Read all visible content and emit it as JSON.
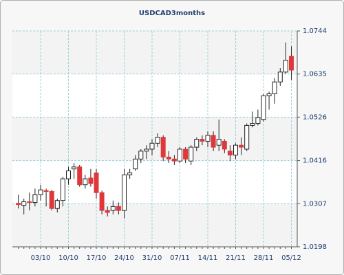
{
  "chart_data": {
    "type": "candlestick",
    "title": "USDCAD3months",
    "categories": [
      null,
      null,
      null,
      null,
      "03/10",
      null,
      null,
      null,
      null,
      "10/10",
      null,
      null,
      null,
      null,
      "17/10",
      null,
      null,
      null,
      null,
      "24/10",
      null,
      null,
      null,
      null,
      "31/10",
      null,
      null,
      null,
      null,
      "07/11",
      null,
      null,
      null,
      null,
      "14/11",
      null,
      null,
      null,
      null,
      "21/11",
      null,
      null,
      null,
      null,
      "28/11",
      null,
      null,
      null,
      null,
      "05/12"
    ],
    "open": [
      1.0308,
      1.0303,
      1.0312,
      1.031,
      1.033,
      1.034,
      1.0338,
      1.0295,
      1.0315,
      1.037,
      1.0395,
      1.04,
      1.0355,
      1.0372,
      1.0385,
      1.0335,
      1.029,
      1.029,
      1.03,
      1.029,
      1.038,
      1.0395,
      1.042,
      1.044,
      1.0445,
      1.046,
      1.0475,
      1.0425,
      1.042,
      1.0415,
      1.0445,
      1.0415,
      1.045,
      1.047,
      1.0465,
      1.048,
      1.0455,
      1.0465,
      1.044,
      1.043,
      1.0455,
      1.0445,
      1.0505,
      1.051,
      1.052,
      1.058,
      1.0585,
      1.0615,
      1.064,
      1.068
    ],
    "high": [
      1.033,
      1.032,
      1.0335,
      1.0345,
      1.0355,
      1.0345,
      1.0342,
      1.032,
      1.0375,
      1.04,
      1.041,
      1.0405,
      1.038,
      1.0395,
      1.0395,
      1.034,
      1.03,
      1.0315,
      1.031,
      1.0395,
      1.0395,
      1.043,
      1.0445,
      1.0455,
      1.047,
      1.0485,
      1.048,
      1.044,
      1.043,
      1.045,
      1.045,
      1.0455,
      1.0475,
      1.048,
      1.049,
      1.049,
      1.052,
      1.047,
      1.0455,
      1.046,
      1.0475,
      1.051,
      1.054,
      1.0545,
      1.0585,
      1.059,
      1.0625,
      1.065,
      1.0715,
      1.0705
    ],
    "low": [
      1.0295,
      1.028,
      1.029,
      1.03,
      1.0315,
      1.03,
      1.029,
      1.0285,
      1.03,
      1.0355,
      1.037,
      1.035,
      1.0345,
      1.035,
      1.032,
      1.028,
      1.0275,
      1.028,
      1.028,
      1.027,
      1.037,
      1.039,
      1.041,
      1.042,
      1.043,
      1.045,
      1.0415,
      1.041,
      1.0405,
      1.041,
      1.041,
      1.0405,
      1.044,
      1.0455,
      1.045,
      1.044,
      1.044,
      1.0435,
      1.0415,
      1.042,
      1.043,
      1.044,
      1.05,
      1.0505,
      1.0515,
      1.0545,
      1.056,
      1.0605,
      1.0635,
      1.062
    ],
    "close": [
      1.0305,
      1.0312,
      1.031,
      1.033,
      1.0342,
      1.0338,
      1.0295,
      1.0315,
      1.037,
      1.039,
      1.04,
      1.0355,
      1.037,
      1.0358,
      1.0335,
      1.029,
      1.0285,
      1.03,
      1.029,
      1.038,
      1.0385,
      1.042,
      1.044,
      1.0445,
      1.046,
      1.0475,
      1.0425,
      1.042,
      1.0415,
      1.0445,
      1.042,
      1.045,
      1.047,
      1.0465,
      1.048,
      1.045,
      1.047,
      1.0445,
      1.043,
      1.0455,
      1.045,
      1.0505,
      1.051,
      1.0525,
      1.058,
      1.0585,
      1.0615,
      1.064,
      1.067,
      1.0645
    ],
    "up_color": "#ffffff",
    "down_color": "#e0383a",
    "ylim": [
      1.0198,
      1.0744
    ],
    "yticks": [
      1.0198,
      1.0307,
      1.0416,
      1.0526,
      1.0635,
      1.0744
    ],
    "grid": true
  }
}
